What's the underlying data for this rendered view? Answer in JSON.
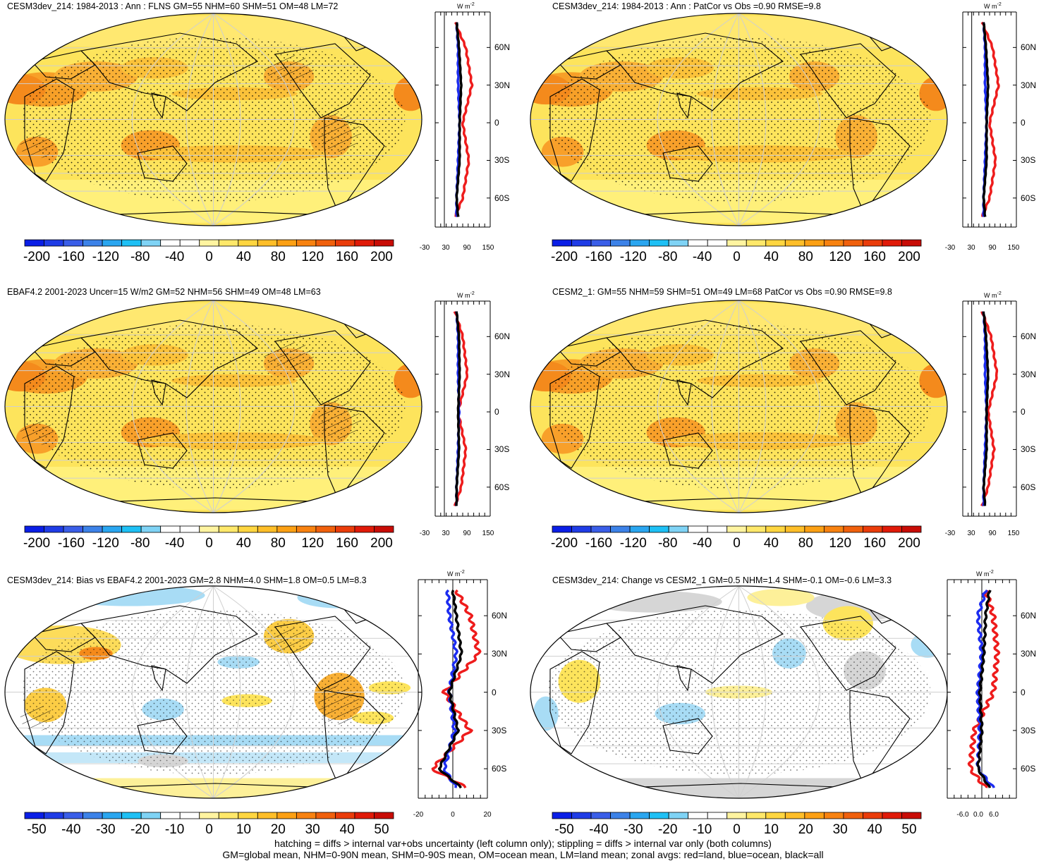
{
  "panels": [
    {
      "id": "p1",
      "title": "CESM3dev_214: 1984-2013 : Ann : FLNS GM=55 NHM=60 SHM=51 OM=48 LM=72",
      "style": "abs",
      "hatch": true
    },
    {
      "id": "p2",
      "title": "CESM3dev_214: 1984-2013 : Ann : PatCor vs Obs =0.90 RMSE=9.8",
      "style": "abs",
      "hatch": false
    },
    {
      "id": "p3",
      "title": "EBAF4.2 2001-2023 Uncer=15 W/m2 GM=52 NHM=56 SHM=49 OM=48 LM=63",
      "style": "abs",
      "hatch": true
    },
    {
      "id": "p4",
      "title": "CESM2_1: GM=55 NHM=59 SHM=51 OM=49 LM=68 PatCor vs Obs =0.90 RMSE=9.8",
      "style": "abs",
      "hatch": false
    },
    {
      "id": "p5",
      "title": "CESM3dev_214: Bias vs EBAF4.2 2001-2023 GM=2.8 NHM=4.0 SHM=1.8 OM=0.5 LM=8.3",
      "style": "bias",
      "hatch": true
    },
    {
      "id": "p6",
      "title": "CESM3dev_214: Change vs CESM2_1 GM=0.5 NHM=1.4 SHM=-0.1 OM=-0.6 LM=3.3",
      "style": "change",
      "hatch": false
    }
  ],
  "zonal_unit": "W m",
  "zonal_unit_sup": "-2",
  "lat_labels": [
    "60N",
    "30N",
    "0",
    "30S",
    "60S"
  ],
  "zonal_xticks_abs": [
    "-30",
    "30",
    "90",
    "150"
  ],
  "zonal_xticks_bias": [
    "-20",
    "0",
    "20"
  ],
  "zonal_xticks_change": [
    "-6.0",
    "0.0",
    "6.0"
  ],
  "colorbar_abs_labels": [
    "-200",
    "-160",
    "-120",
    "-80",
    "-40",
    "0",
    "40",
    "80",
    "120",
    "160",
    "200"
  ],
  "colorbar_diff_labels": [
    "-50",
    "-40",
    "-30",
    "-20",
    "-10",
    "0",
    "10",
    "20",
    "30",
    "40",
    "50"
  ],
  "colorbar_colors": [
    "#0a1ee6",
    "#1f3ce6",
    "#3a5ee8",
    "#3c82e8",
    "#2aa6f0",
    "#1ec0f5",
    "#7fd3f5",
    "#ffffff",
    "#ffffff",
    "#fff4a0",
    "#ffe86a",
    "#ffd640",
    "#ffbe28",
    "#fca014",
    "#f88210",
    "#f0600c",
    "#ea3c0a",
    "#e01a08",
    "#c80c06"
  ],
  "footer_lines": [
    "hatching = diffs > internal var+obs uncertainty (left column only); stippling = diffs > internal var only (both columns)",
    "GM=global mean, NHM=0-90N mean, SHM=0-90S mean, OM=ocean mean, LM=land mean; zonal avgs: red=land, blue=ocean, black=all"
  ],
  "chart_data": [
    {
      "type": "heatmap",
      "title": "CESM3dev_214: 1984-2013 : Ann : FLNS GM=55 NHM=60 SHM=51 OM=48 LM=72",
      "colorbar": [
        -200,
        -160,
        -120,
        -80,
        -40,
        0,
        40,
        80,
        120,
        160,
        200
      ],
      "zonal_mean": {
        "lat": [
          80,
          60,
          30,
          0,
          -30,
          -60,
          -75
        ],
        "all": [
          40,
          48,
          55,
          50,
          50,
          40,
          45
        ],
        "land": [
          35,
          70,
          90,
          60,
          80,
          60,
          35
        ],
        "ocean": [
          40,
          45,
          45,
          50,
          45,
          40,
          40
        ],
        "xlim": [
          -30,
          150
        ]
      }
    },
    {
      "type": "heatmap",
      "title": "CESM3dev_214: 1984-2013 : Ann : PatCor vs Obs =0.90 RMSE=9.8",
      "colorbar": [
        -200,
        -160,
        -120,
        -80,
        -40,
        0,
        40,
        80,
        120,
        160,
        200
      ],
      "zonal_mean": {
        "lat": [
          80,
          60,
          30,
          0,
          -30,
          -60,
          -75
        ],
        "all": [
          40,
          48,
          55,
          50,
          50,
          40,
          45
        ],
        "land": [
          35,
          70,
          90,
          60,
          80,
          60,
          35
        ],
        "ocean": [
          40,
          45,
          45,
          50,
          45,
          40,
          40
        ],
        "xlim": [
          -30,
          150
        ]
      }
    },
    {
      "type": "heatmap",
      "title": "EBAF4.2 2001-2023 Uncer=15 W/m2 GM=52 NHM=56 SHM=49 OM=48 LM=63",
      "colorbar": [
        -200,
        -160,
        -120,
        -80,
        -40,
        0,
        40,
        80,
        120,
        160,
        200
      ],
      "zonal_mean": {
        "lat": [
          80,
          60,
          30,
          0,
          -30,
          -60,
          -75
        ],
        "all": [
          40,
          48,
          50,
          45,
          48,
          40,
          40
        ],
        "land": [
          35,
          60,
          75,
          45,
          70,
          55,
          35
        ],
        "ocean": [
          40,
          45,
          45,
          48,
          45,
          40,
          40
        ],
        "xlim": [
          -30,
          150
        ]
      }
    },
    {
      "type": "heatmap",
      "title": "CESM2_1: GM=55 NHM=59 SHM=51 OM=49 LM=68 PatCor vs Obs =0.90 RMSE=9.8",
      "colorbar": [
        -200,
        -160,
        -120,
        -80,
        -40,
        0,
        40,
        80,
        120,
        160,
        200
      ],
      "zonal_mean": {
        "lat": [
          80,
          60,
          30,
          0,
          -30,
          -60,
          -75
        ],
        "all": [
          40,
          48,
          55,
          50,
          50,
          40,
          45
        ],
        "land": [
          35,
          65,
          85,
          55,
          75,
          55,
          35
        ],
        "ocean": [
          40,
          45,
          45,
          50,
          45,
          40,
          40
        ],
        "xlim": [
          -30,
          150
        ]
      }
    },
    {
      "type": "heatmap",
      "title": "CESM3dev_214: Bias vs EBAF4.2 2001-2023 GM=2.8 NHM=4.0 SHM=1.8 OM=0.5 LM=8.3",
      "colorbar": [
        -50,
        -40,
        -30,
        -20,
        -10,
        0,
        10,
        20,
        30,
        40,
        50
      ],
      "zonal_mean": {
        "lat": [
          80,
          60,
          30,
          0,
          -30,
          -60,
          -75
        ],
        "all": [
          0,
          2,
          5,
          -2,
          3,
          -8,
          5
        ],
        "land": [
          2,
          10,
          15,
          -5,
          10,
          -12,
          8
        ],
        "ocean": [
          -3,
          -2,
          2,
          -2,
          1,
          -5,
          2
        ],
        "xlim": [
          -20,
          20
        ]
      }
    },
    {
      "type": "heatmap",
      "title": "CESM3dev_214: Change vs CESM2_1 GM=0.5 NHM=1.4 SHM=-0.1 OM=-0.6 LM=3.3",
      "colorbar": [
        -50,
        -40,
        -30,
        -20,
        -10,
        0,
        10,
        20,
        30,
        40,
        50
      ],
      "zonal_mean": {
        "lat": [
          80,
          60,
          30,
          0,
          -30,
          -60,
          -75
        ],
        "all": [
          2,
          1,
          0.5,
          -0.5,
          0,
          -1,
          2
        ],
        "land": [
          1,
          3,
          4,
          3,
          -2,
          -3,
          1
        ],
        "ocean": [
          1,
          -1,
          0,
          -1,
          -0.5,
          -1,
          3
        ],
        "xlim": [
          -9,
          9
        ]
      }
    }
  ]
}
